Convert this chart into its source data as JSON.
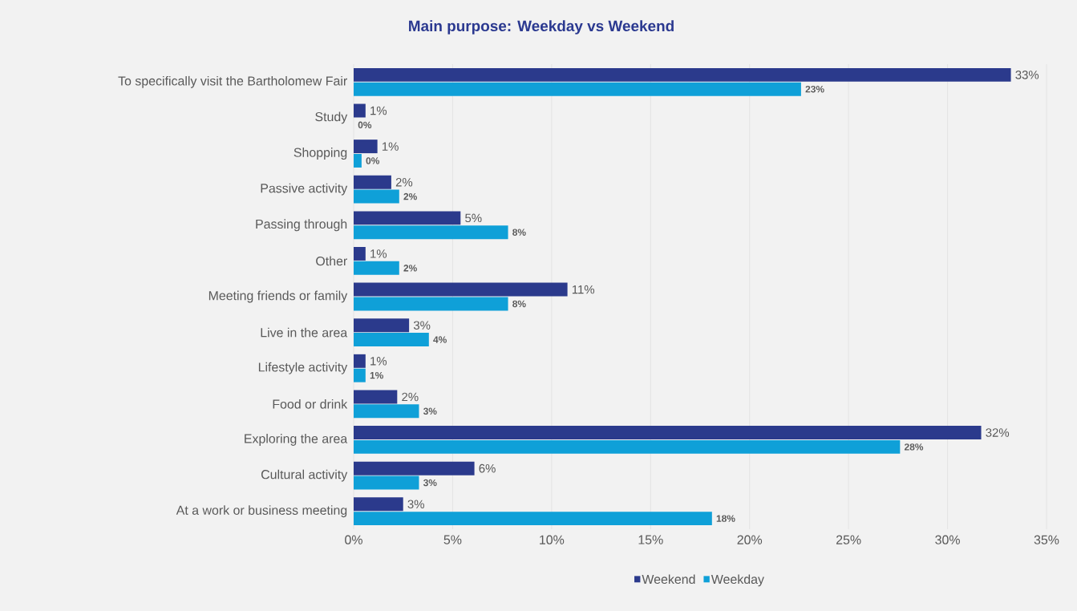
{
  "chart_data": {
    "type": "bar",
    "orientation": "horizontal",
    "title": "Main purpose: Weekday vs Weekend",
    "categories": [
      "To specifically visit the Bartholomew Fair",
      "Study",
      "Shopping",
      "Passive activity",
      "Passing through",
      "Other",
      "Meeting friends or family",
      "Live in the area",
      "Lifestyle activity",
      "Food or drink",
      "Exploring the area",
      "Cultural activity",
      "At a work or business meeting"
    ],
    "series": [
      {
        "name": "Weekend",
        "color": "#2b3a8c",
        "values": [
          33.2,
          0.6,
          1.2,
          1.9,
          5.4,
          0.6,
          10.8,
          2.8,
          0.6,
          2.2,
          31.7,
          6.1,
          2.5
        ],
        "value_labels": [
          "33%",
          "1%",
          "1%",
          "2%",
          "5%",
          "1%",
          "11%",
          "3%",
          "1%",
          "2%",
          "32%",
          "6%",
          "3%"
        ]
      },
      {
        "name": "Weekday",
        "color": "#0fa0d8",
        "values": [
          22.6,
          0,
          0.4,
          2.3,
          7.8,
          2.3,
          7.8,
          3.8,
          0.6,
          3.3,
          27.6,
          3.3,
          18.1
        ],
        "value_labels": [
          "23%",
          "0%",
          "0%",
          "2%",
          "8%",
          "2%",
          "8%",
          "4%",
          "1%",
          "3%",
          "28%",
          "3%",
          "18%"
        ]
      }
    ],
    "xlim": [
      0,
      35
    ],
    "xticks": [
      {
        "value": 0,
        "label": "0%"
      },
      {
        "value": 5,
        "label": "5%"
      },
      {
        "value": 10,
        "label": "10%"
      },
      {
        "value": 15,
        "label": "15%"
      },
      {
        "value": 20,
        "label": "20%"
      },
      {
        "value": 25,
        "label": "25%"
      },
      {
        "value": 30,
        "label": "30%"
      },
      {
        "value": 35,
        "label": "35%"
      }
    ],
    "grid": "x",
    "legend": "bottom"
  }
}
